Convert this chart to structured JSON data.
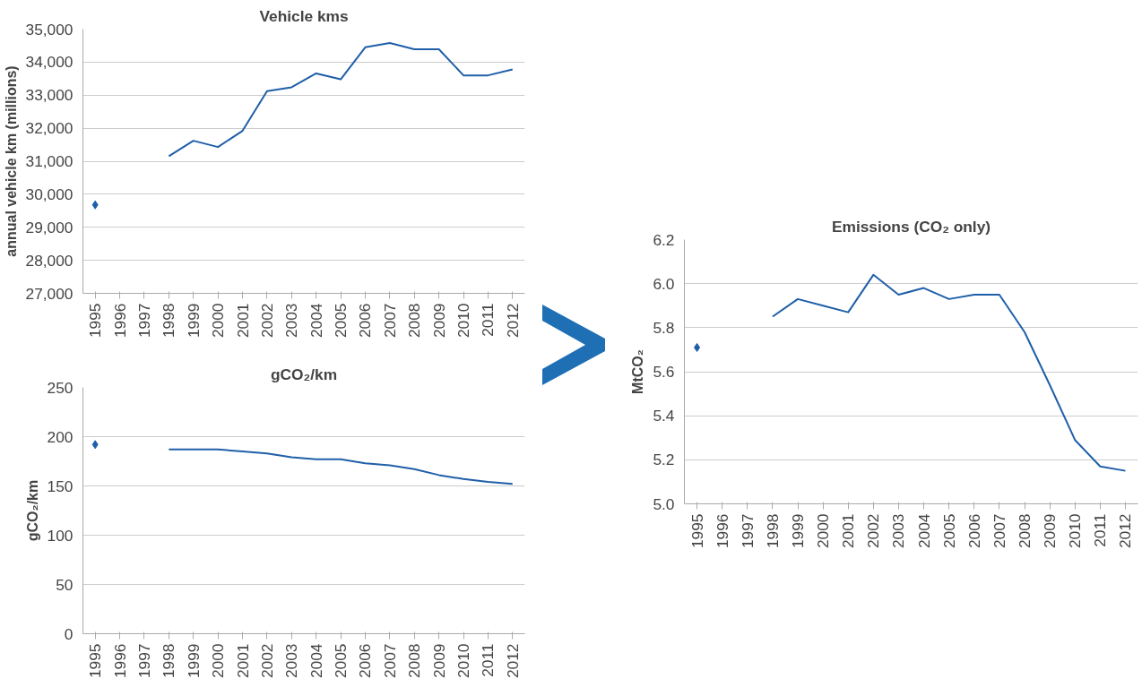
{
  "chart_data": [
    {
      "type": "line",
      "title": "Vehicle kms",
      "ylabel": "annual vehicle km (millions)",
      "categories": [
        "1995",
        "1996",
        "1997",
        "1998",
        "1999",
        "2000",
        "2001",
        "2002",
        "2003",
        "2004",
        "2005",
        "2006",
        "2007",
        "2008",
        "2009",
        "2010",
        "2011",
        "2012"
      ],
      "ylim": [
        27000,
        35000
      ],
      "yticks": [
        {
          "value": 27000,
          "label": "27,000"
        },
        {
          "value": 28000,
          "label": "28,000"
        },
        {
          "value": 29000,
          "label": "29,000"
        },
        {
          "value": 30000,
          "label": "30,000"
        },
        {
          "value": 31000,
          "label": "31,000"
        },
        {
          "value": 32000,
          "label": "32,000"
        },
        {
          "value": 33000,
          "label": "33,000"
        },
        {
          "value": 34000,
          "label": "34,000"
        },
        {
          "value": 35000,
          "label": "35,000"
        }
      ],
      "grid": "y",
      "series": [
        {
          "type": "scatter",
          "marker": "diamond",
          "color": "#1f5fa8",
          "values": [
            29680,
            null,
            null,
            null,
            null,
            null,
            null,
            null,
            null,
            null,
            null,
            null,
            null,
            null,
            null,
            null,
            null,
            null
          ]
        },
        {
          "color": "#1f5fa8",
          "values": [
            null,
            null,
            null,
            31150,
            31620,
            31430,
            31920,
            33120,
            33240,
            33660,
            33480,
            34450,
            34580,
            34390,
            34390,
            33600,
            33600,
            33780
          ]
        }
      ]
    },
    {
      "type": "line",
      "title": "gCO₂/km",
      "ylabel": "gCO₂/km",
      "categories": [
        "1995",
        "1996",
        "1997",
        "1998",
        "1999",
        "2000",
        "2001",
        "2002",
        "2003",
        "2004",
        "2005",
        "2006",
        "2007",
        "2008",
        "2009",
        "2010",
        "2011",
        "2012"
      ],
      "ylim": [
        0,
        250
      ],
      "yticks": [
        0,
        50,
        100,
        150,
        200,
        250
      ],
      "grid": "y",
      "series": [
        {
          "type": "scatter",
          "marker": "diamond",
          "color": "#1f5fa8",
          "values": [
            192,
            null,
            null,
            null,
            null,
            null,
            null,
            null,
            null,
            null,
            null,
            null,
            null,
            null,
            null,
            null,
            null,
            null
          ]
        },
        {
          "color": "#1f5fa8",
          "values": [
            null,
            null,
            null,
            187,
            187,
            187,
            185,
            183,
            179,
            177,
            177,
            173,
            171,
            167,
            161,
            157,
            154,
            152
          ]
        }
      ]
    },
    {
      "type": "line",
      "title": "Emissions (CO₂ only)",
      "ylabel": "MtCO₂",
      "categories": [
        "1995",
        "1996",
        "1997",
        "1998",
        "1999",
        "2000",
        "2001",
        "2002",
        "2003",
        "2004",
        "2005",
        "2006",
        "2007",
        "2008",
        "2009",
        "2010",
        "2011",
        "2012"
      ],
      "ylim": [
        5.0,
        6.2
      ],
      "yticks": [
        {
          "value": 5.0,
          "label": "5.0"
        },
        {
          "value": 5.2,
          "label": "5.2"
        },
        {
          "value": 5.4,
          "label": "5.4"
        },
        {
          "value": 5.6,
          "label": "5.6"
        },
        {
          "value": 5.8,
          "label": "5.8"
        },
        {
          "value": 6.0,
          "label": "6.0"
        },
        {
          "value": 6.2,
          "label": "6.2"
        }
      ],
      "grid": "y",
      "series": [
        {
          "type": "scatter",
          "marker": "diamond",
          "color": "#1f5fa8",
          "values": [
            5.71,
            null,
            null,
            null,
            null,
            null,
            null,
            null,
            null,
            null,
            null,
            null,
            null,
            null,
            null,
            null,
            null,
            null
          ]
        },
        {
          "color": "#1f5fa8",
          "values": [
            null,
            null,
            null,
            5.85,
            5.93,
            5.9,
            5.87,
            6.04,
            5.95,
            5.98,
            5.93,
            5.95,
            5.95,
            5.78,
            5.54,
            5.29,
            5.17,
            5.15
          ]
        }
      ]
    }
  ]
}
